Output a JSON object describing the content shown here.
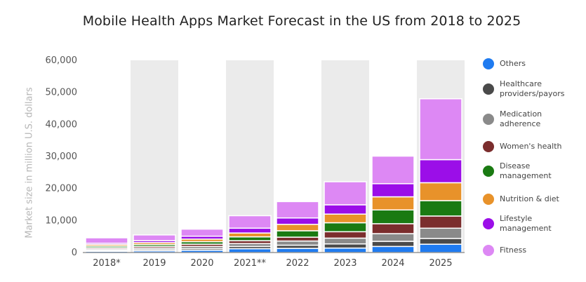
{
  "chart_data": {
    "type": "bar",
    "stacked": true,
    "title": "Mobile Health Apps Market Forecast in the US from 2018 to 2025",
    "ylabel": "Market size in million U.S. dollars",
    "xlabel": "",
    "ylim": [
      0,
      60000
    ],
    "yticks": [
      0,
      10000,
      20000,
      30000,
      40000,
      50000,
      60000
    ],
    "ytick_labels": [
      "0",
      "10,000",
      "20,000",
      "30,000",
      "40,000",
      "50,000",
      "60,000"
    ],
    "categories": [
      "2018*",
      "2019",
      "2020",
      "2021**",
      "2022",
      "2023",
      "2024",
      "2025"
    ],
    "legend_position": "right",
    "series": [
      {
        "name": "Others",
        "color": "#1f7bf0",
        "values": [
          400,
          500,
          700,
          1200,
          1300,
          1400,
          1900,
          2600
        ]
      },
      {
        "name": "Healthcare providers/payors",
        "color": "#4a4a4a",
        "values": [
          300,
          400,
          500,
          700,
          1000,
          1300,
          1600,
          1800
        ]
      },
      {
        "name": "Medication adherence",
        "color": "#8a8a8a",
        "values": [
          400,
          500,
          700,
          900,
          1300,
          1800,
          2400,
          3200
        ]
      },
      {
        "name": "Women's health",
        "color": "#7b2d2d",
        "values": [
          400,
          500,
          700,
          900,
          1200,
          2000,
          3100,
          3800
        ]
      },
      {
        "name": "Disease management",
        "color": "#1a7a12",
        "values": [
          500,
          600,
          800,
          1200,
          2000,
          2800,
          4300,
          4800
        ]
      },
      {
        "name": "Nutrition & diet",
        "color": "#e8922a",
        "values": [
          500,
          600,
          800,
          1200,
          2000,
          2700,
          4100,
          5600
        ]
      },
      {
        "name": "Lifestyle management",
        "color": "#9b0ee8",
        "values": [
          400,
          600,
          900,
          1500,
          2000,
          2900,
          4100,
          7200
        ]
      },
      {
        "name": "Fitness",
        "color": "#dd88f4",
        "values": [
          1700,
          1800,
          2200,
          3900,
          5100,
          7200,
          8600,
          19000
        ]
      }
    ]
  }
}
